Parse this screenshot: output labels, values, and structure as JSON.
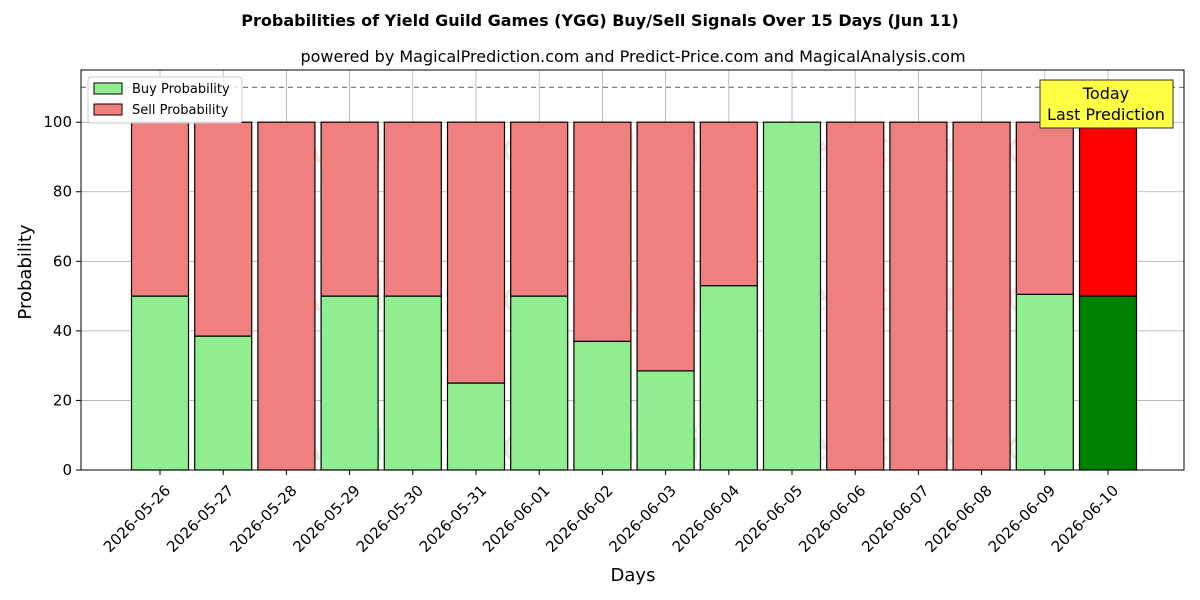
{
  "chart_data": {
    "type": "bar",
    "stacked": true,
    "title": "Probabilities of Yield Guild Games (YGG) Buy/Sell Signals Over 15 Days (Jun 11)",
    "subtitle": "powered by MagicalPrediction.com and Predict-Price.com and MagicalAnalysis.com",
    "xlabel": "Days",
    "ylabel": "Probability",
    "ylim": [
      0,
      115
    ],
    "yticks": [
      0,
      20,
      40,
      60,
      80,
      100
    ],
    "grid": true,
    "legend_position": "top-left",
    "reference_line": 110,
    "categories": [
      "2026-05-26",
      "2026-05-27",
      "2026-05-28",
      "2026-05-29",
      "2026-05-30",
      "2026-05-31",
      "2026-06-01",
      "2026-06-02",
      "2026-06-03",
      "2026-06-04",
      "2026-06-05",
      "2026-06-06",
      "2026-06-07",
      "2026-06-08",
      "2026-06-09",
      "2026-06-10"
    ],
    "series": [
      {
        "name": "Buy Probability",
        "color": "#90ee90",
        "values": [
          50,
          38.5,
          0,
          50,
          50,
          25,
          50,
          37,
          28.5,
          53,
          100,
          0,
          0,
          0,
          50.5,
          50
        ]
      },
      {
        "name": "Sell Probability",
        "color": "#f08080",
        "values": [
          50,
          61.5,
          100,
          50,
          50,
          75,
          50,
          63,
          71.5,
          47,
          0,
          100,
          100,
          100,
          49.5,
          50
        ]
      }
    ],
    "highlight": {
      "index": 15,
      "buy_color": "#008000",
      "sell_color": "#ff0000"
    },
    "annotation": {
      "line1": "Today",
      "line2": "Last Prediction",
      "color": "#ffff44"
    },
    "watermarks": [
      "MagicalAnalysis.com",
      "MagicalPrediction.com"
    ]
  }
}
